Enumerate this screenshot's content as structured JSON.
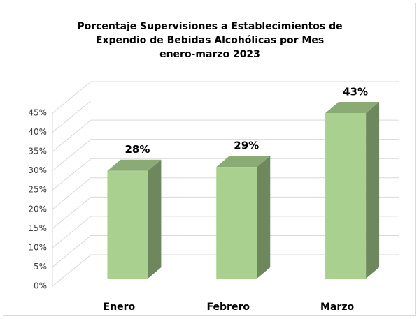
{
  "chart_data": {
    "type": "bar3d",
    "title": [
      "Porcentaje Supervisiones a Establecimientos de",
      "Expendio de Bebidas Alcohólicas por Mes"
    ],
    "subtitle": "enero-marzo 2023",
    "categories": [
      "Enero",
      "Febrero",
      "Marzo"
    ],
    "values": [
      28,
      29,
      43
    ],
    "value_labels": [
      "28%",
      "29%",
      "43%"
    ],
    "color": "#a9d08e",
    "ylim": [
      0,
      45
    ],
    "yticks": [
      {
        "value": 0,
        "label": "0%"
      },
      {
        "value": 5,
        "label": "5%"
      },
      {
        "value": 10,
        "label": "10%"
      },
      {
        "value": 15,
        "label": "15%"
      },
      {
        "value": 20,
        "label": "20%"
      },
      {
        "value": 25,
        "label": "25%"
      },
      {
        "value": 30,
        "label": "30%"
      },
      {
        "value": 35,
        "label": "35%"
      },
      {
        "value": 40,
        "label": "40%"
      },
      {
        "value": 45,
        "label": "45%"
      }
    ],
    "grid": true
  }
}
